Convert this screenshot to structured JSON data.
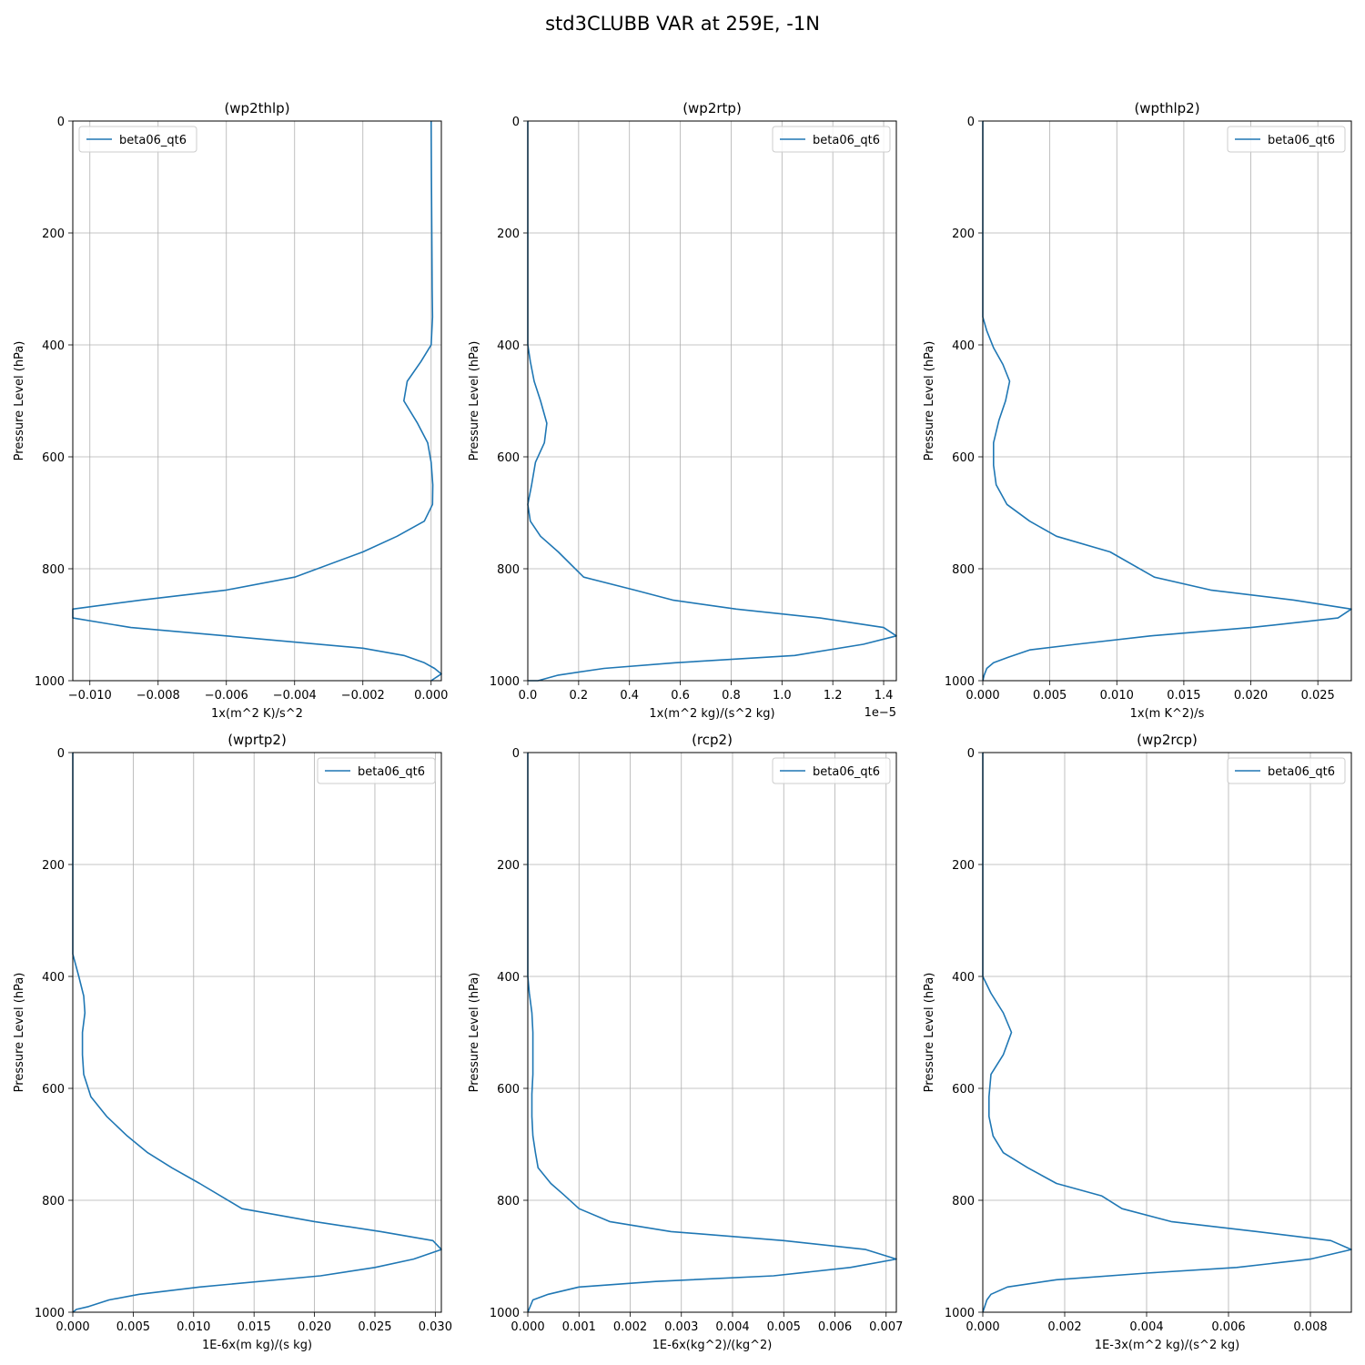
{
  "figure": {
    "title": "std3CLUBB VAR at 259E, -1N",
    "line_color": "#1f77b4",
    "grid_color": "#b0b0b0"
  },
  "chart_data": [
    {
      "type": "line",
      "title": "(wp2thlp)",
      "xlabel": "1x(m^2 K)/s^2",
      "ylabel": "Pressure Level (hPa)",
      "xlim": [
        -0.0105,
        0.0003
      ],
      "ylim": [
        1000,
        0
      ],
      "xticks": [
        -0.01,
        -0.008,
        -0.006,
        -0.004,
        -0.002,
        0.0
      ],
      "xtick_labels": [
        "−0.010",
        "−0.008",
        "−0.006",
        "−0.004",
        "−0.002",
        "0.000"
      ],
      "yticks": [
        0,
        200,
        400,
        600,
        800,
        1000
      ],
      "ytick_labels": [
        "0",
        "200",
        "400",
        "600",
        "800",
        "1000"
      ],
      "grid": true,
      "legend_position": "upper left",
      "series": [
        {
          "name": "beta06_qt6",
          "x": [
            0.0,
            1e-05,
            2e-05,
            3e-05,
            4e-05,
            0.0,
            -0.0003,
            -0.0007,
            -0.0008,
            -0.0004,
            -0.0001,
            0.0,
            5e-05,
            4e-05,
            -0.0002,
            -0.001,
            -0.002,
            -0.004,
            -0.006,
            -0.0085,
            -0.0105,
            -0.0105,
            -0.0088,
            -0.006,
            -0.002,
            -0.0008,
            -0.0002,
            0.0001,
            0.0003,
            0.0
          ],
          "y": [
            0,
            100,
            200,
            300,
            350,
            400,
            430,
            465,
            500,
            540,
            575,
            610,
            650,
            685,
            715,
            742,
            770,
            815,
            838,
            856,
            872,
            888,
            905,
            920,
            942,
            955,
            968,
            978,
            988,
            1000
          ]
        }
      ]
    },
    {
      "type": "line",
      "title": "(wp2rtp)",
      "xlabel": "1x(m^2 kg)/(s^2 kg)",
      "ylabel": "Pressure Level (hPa)",
      "offset_text": "1e−5",
      "xlim": [
        0.0,
        1.45e-05
      ],
      "ylim": [
        1000,
        0
      ],
      "xticks": [
        0.0,
        2e-06,
        4e-06,
        6e-06,
        8e-06,
        1e-05,
        1.2e-05,
        1.4e-05
      ],
      "xtick_labels": [
        "0.0",
        "0.2",
        "0.4",
        "0.6",
        "0.8",
        "1.0",
        "1.2",
        "1.4"
      ],
      "yticks": [
        0,
        200,
        400,
        600,
        800,
        1000
      ],
      "ytick_labels": [
        "0",
        "200",
        "400",
        "600",
        "800",
        "1000"
      ],
      "grid": true,
      "legend_position": "upper right",
      "series": [
        {
          "name": "beta06_qt6",
          "x": [
            0.0,
            0.0,
            0.0,
            0.0,
            1e-07,
            2.5e-07,
            5e-07,
            7.5e-07,
            6.5e-07,
            3e-07,
            1.5e-07,
            0.0,
            1e-07,
            5e-07,
            1.2e-06,
            2.2e-06,
            4.2e-06,
            5.7e-06,
            8.2e-06,
            1.15e-05,
            1.4e-05,
            1.45e-05,
            1.32e-05,
            1.05e-05,
            5.8e-06,
            3e-06,
            1.2e-06,
            4e-07,
            0.0
          ],
          "y": [
            0,
            200,
            350,
            400,
            430,
            465,
            500,
            540,
            575,
            610,
            650,
            685,
            715,
            742,
            770,
            815,
            838,
            856,
            872,
            888,
            905,
            920,
            935,
            955,
            968,
            978,
            990,
            1000,
            1000
          ]
        }
      ]
    },
    {
      "type": "line",
      "title": "(wpthlp2)",
      "xlabel": "1x(m K^2)/s",
      "ylabel": "Pressure Level (hPa)",
      "xlim": [
        0.0,
        0.0275
      ],
      "ylim": [
        1000,
        0
      ],
      "xticks": [
        0.0,
        0.005,
        0.01,
        0.015,
        0.02,
        0.025
      ],
      "xtick_labels": [
        "0.000",
        "0.005",
        "0.010",
        "0.015",
        "0.020",
        "0.025"
      ],
      "yticks": [
        0,
        200,
        400,
        600,
        800,
        1000
      ],
      "ytick_labels": [
        "0",
        "200",
        "400",
        "600",
        "800",
        "1000"
      ],
      "grid": true,
      "legend_position": "upper right",
      "series": [
        {
          "name": "beta06_qt6",
          "x": [
            0.0,
            0.0,
            0.0,
            0.0003,
            0.0008,
            0.0015,
            0.002,
            0.0017,
            0.0012,
            0.0008,
            0.0008,
            0.001,
            0.0018,
            0.0035,
            0.0055,
            0.0095,
            0.0128,
            0.017,
            0.0232,
            0.0275,
            0.0265,
            0.02,
            0.0125,
            0.007,
            0.0035,
            0.0019,
            0.0008,
            0.0003,
            0.0001,
            0.0
          ],
          "y": [
            0,
            200,
            350,
            375,
            405,
            435,
            465,
            500,
            535,
            575,
            615,
            650,
            685,
            715,
            742,
            770,
            815,
            838,
            856,
            872,
            888,
            905,
            920,
            935,
            945,
            958,
            968,
            978,
            990,
            1000
          ]
        }
      ]
    },
    {
      "type": "line",
      "title": "(wprtp2)",
      "xlabel": "1E-6x(m kg)/(s kg)",
      "ylabel": "Pressure Level (hPa)",
      "xlim": [
        0.0,
        0.0305
      ],
      "ylim": [
        1000,
        0
      ],
      "xticks": [
        0.0,
        0.005,
        0.01,
        0.015,
        0.02,
        0.025,
        0.03
      ],
      "xtick_labels": [
        "0.000",
        "0.005",
        "0.010",
        "0.015",
        "0.020",
        "0.025",
        "0.030"
      ],
      "yticks": [
        0,
        200,
        400,
        600,
        800,
        1000
      ],
      "ytick_labels": [
        "0",
        "200",
        "400",
        "600",
        "800",
        "1000"
      ],
      "grid": true,
      "legend_position": "upper right",
      "series": [
        {
          "name": "beta06_qt6",
          "x": [
            0.0,
            0.0,
            0.0,
            0.0005,
            0.0009,
            0.001,
            0.0008,
            0.0008,
            0.0009,
            0.0015,
            0.0028,
            0.0045,
            0.0062,
            0.0082,
            0.0105,
            0.014,
            0.02,
            0.0255,
            0.0298,
            0.0305,
            0.0282,
            0.025,
            0.0205,
            0.0105,
            0.0055,
            0.003,
            0.0013,
            0.0003,
            0.0
          ],
          "y": [
            0,
            200,
            360,
            400,
            435,
            465,
            500,
            540,
            575,
            615,
            650,
            685,
            715,
            742,
            770,
            815,
            838,
            856,
            872,
            888,
            905,
            920,
            935,
            955,
            968,
            978,
            990,
            995,
            1000
          ]
        }
      ]
    },
    {
      "type": "line",
      "title": "(rcp2)",
      "xlabel": "1E-6x(kg^2)/(kg^2)",
      "ylabel": "Pressure Level (hPa)",
      "xlim": [
        0.0,
        0.0072
      ],
      "ylim": [
        1000,
        0
      ],
      "xticks": [
        0.0,
        0.001,
        0.002,
        0.003,
        0.004,
        0.005,
        0.006,
        0.007
      ],
      "xtick_labels": [
        "0.000",
        "0.001",
        "0.002",
        "0.003",
        "0.004",
        "0.005",
        "0.006",
        "0.007"
      ],
      "yticks": [
        0,
        200,
        400,
        600,
        800,
        1000
      ],
      "ytick_labels": [
        "0",
        "200",
        "400",
        "600",
        "800",
        "1000"
      ],
      "grid": true,
      "legend_position": "upper right",
      "series": [
        {
          "name": "beta06_qt6",
          "x": [
            0.0,
            0.0,
            0.0,
            3e-05,
            8e-05,
            0.0001,
            0.0001,
            0.0001,
            8e-05,
            8e-05,
            0.0001,
            0.00015,
            0.0002,
            0.00045,
            0.0007,
            0.001,
            0.0016,
            0.0028,
            0.005,
            0.0066,
            0.0072,
            0.0063,
            0.0048,
            0.0025,
            0.001,
            0.0004,
            0.0001,
            0.0
          ],
          "y": [
            0,
            200,
            400,
            430,
            465,
            500,
            540,
            575,
            610,
            650,
            685,
            715,
            742,
            770,
            790,
            815,
            838,
            856,
            872,
            888,
            905,
            920,
            935,
            945,
            955,
            968,
            978,
            1000
          ]
        }
      ]
    },
    {
      "type": "line",
      "title": "(wp2rcp)",
      "xlabel": "1E-3x(m^2 kg)/(s^2 kg)",
      "ylabel": "Pressure Level (hPa)",
      "xlim": [
        0.0,
        0.009
      ],
      "ylim": [
        1000,
        0
      ],
      "xticks": [
        0.0,
        0.002,
        0.004,
        0.006,
        0.008
      ],
      "xtick_labels": [
        "0.000",
        "0.002",
        "0.004",
        "0.006",
        "0.008"
      ],
      "yticks": [
        0,
        200,
        400,
        600,
        800,
        1000
      ],
      "ytick_labels": [
        "0",
        "200",
        "400",
        "600",
        "800",
        "1000"
      ],
      "grid": true,
      "legend_position": "upper right",
      "series": [
        {
          "name": "beta06_qt6",
          "x": [
            0.0,
            0.0,
            0.0,
            0.0,
            0.0002,
            0.0005,
            0.0007,
            0.0005,
            0.0002,
            0.00015,
            0.00015,
            0.00025,
            0.0005,
            0.0011,
            0.0018,
            0.0029,
            0.0034,
            0.0046,
            0.0067,
            0.0085,
            0.009,
            0.008,
            0.0062,
            0.004,
            0.0018,
            0.0006,
            0.0002,
            0.0001,
            0.0
          ],
          "y": [
            0,
            200,
            330,
            400,
            430,
            465,
            500,
            540,
            575,
            615,
            650,
            685,
            715,
            742,
            770,
            792,
            815,
            838,
            856,
            872,
            888,
            905,
            920,
            930,
            942,
            955,
            968,
            978,
            1000
          ]
        }
      ]
    }
  ]
}
